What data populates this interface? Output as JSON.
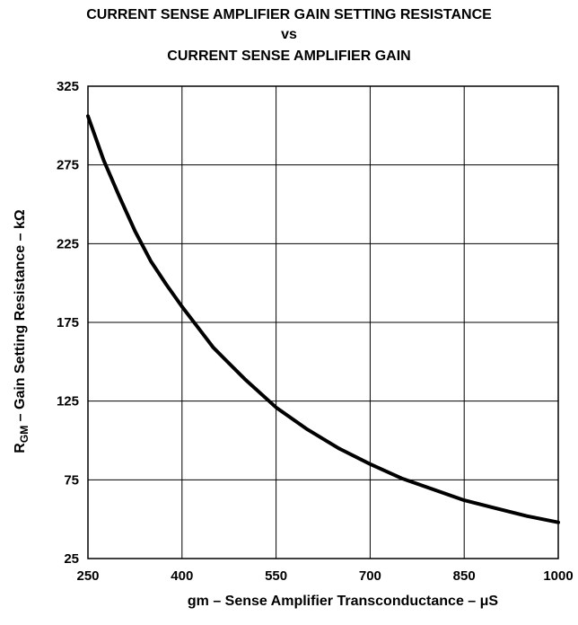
{
  "chart_data": {
    "type": "line",
    "title_lines": [
      "CURRENT SENSE AMPLIFIER GAIN SETTING RESISTANCE",
      "vs",
      "CURRENT SENSE AMPLIFIER GAIN"
    ],
    "xlabel": "gm – Sense Amplifier Transconductance – μS",
    "ylabel": {
      "main": "R",
      "subscript": "GM",
      "rest": " – Gain Setting Resistance – kΩ"
    },
    "xlim": [
      250,
      1000
    ],
    "ylim": [
      25,
      325
    ],
    "xticks": [
      250,
      400,
      550,
      700,
      850,
      1000
    ],
    "yticks": [
      25,
      75,
      125,
      175,
      225,
      275,
      325
    ],
    "grid": true,
    "series": [
      {
        "x": [
          250,
          275,
          300,
          325,
          350,
          375,
          400,
          425,
          450,
          500,
          550,
          600,
          650,
          700,
          750,
          800,
          850,
          900,
          950,
          1000
        ],
        "y": [
          306,
          278,
          255,
          233,
          214,
          199,
          185,
          172,
          159,
          139,
          121,
          107,
          95,
          85,
          76,
          69,
          62,
          57,
          52,
          48
        ]
      }
    ]
  }
}
